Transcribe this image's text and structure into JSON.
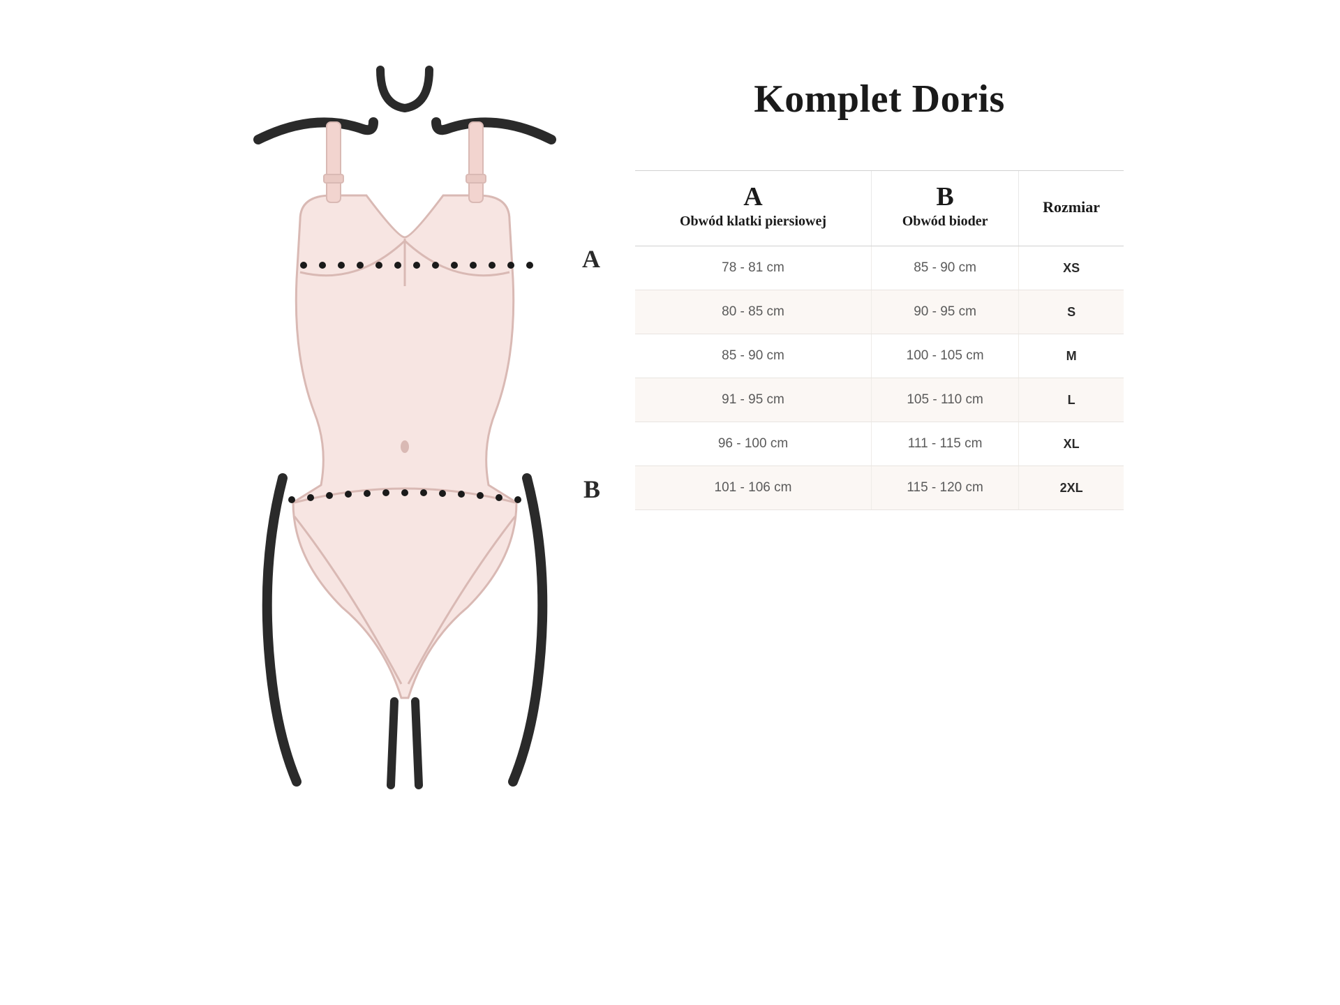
{
  "title": "Komplet Doris",
  "labels": {
    "a": "A",
    "b": "B"
  },
  "columns": {
    "a_letter": "A",
    "a_sub": "Obwód klatki piersiowej",
    "b_letter": "B",
    "b_sub": "Obwód bioder",
    "size": "Rozmiar"
  },
  "rows": [
    {
      "a": "78 - 81 cm",
      "b": "85 - 90 cm",
      "size": "XS",
      "tint": false
    },
    {
      "a": "80 - 85 cm",
      "b": "90 - 95 cm",
      "size": "S",
      "tint": true
    },
    {
      "a": "85 - 90 cm",
      "b": "100 - 105 cm",
      "size": "M",
      "tint": false
    },
    {
      "a": "91 - 95 cm",
      "b": "105 - 110 cm",
      "size": "L",
      "tint": true
    },
    {
      "a": "96 - 100 cm",
      "b": "111 - 115 cm",
      "size": "XL",
      "tint": false
    },
    {
      "a": "101 - 106 cm",
      "b": "115 - 120 cm",
      "size": "2XL",
      "tint": true
    }
  ],
  "diagram": {
    "garment_fill": "#f7e5e2",
    "garment_stroke": "#d9b9b4",
    "outline_stroke": "#2a2a2a",
    "outline_width": 12,
    "dot_color": "#1a1a1a",
    "strap_color": "#f2d4cf"
  }
}
